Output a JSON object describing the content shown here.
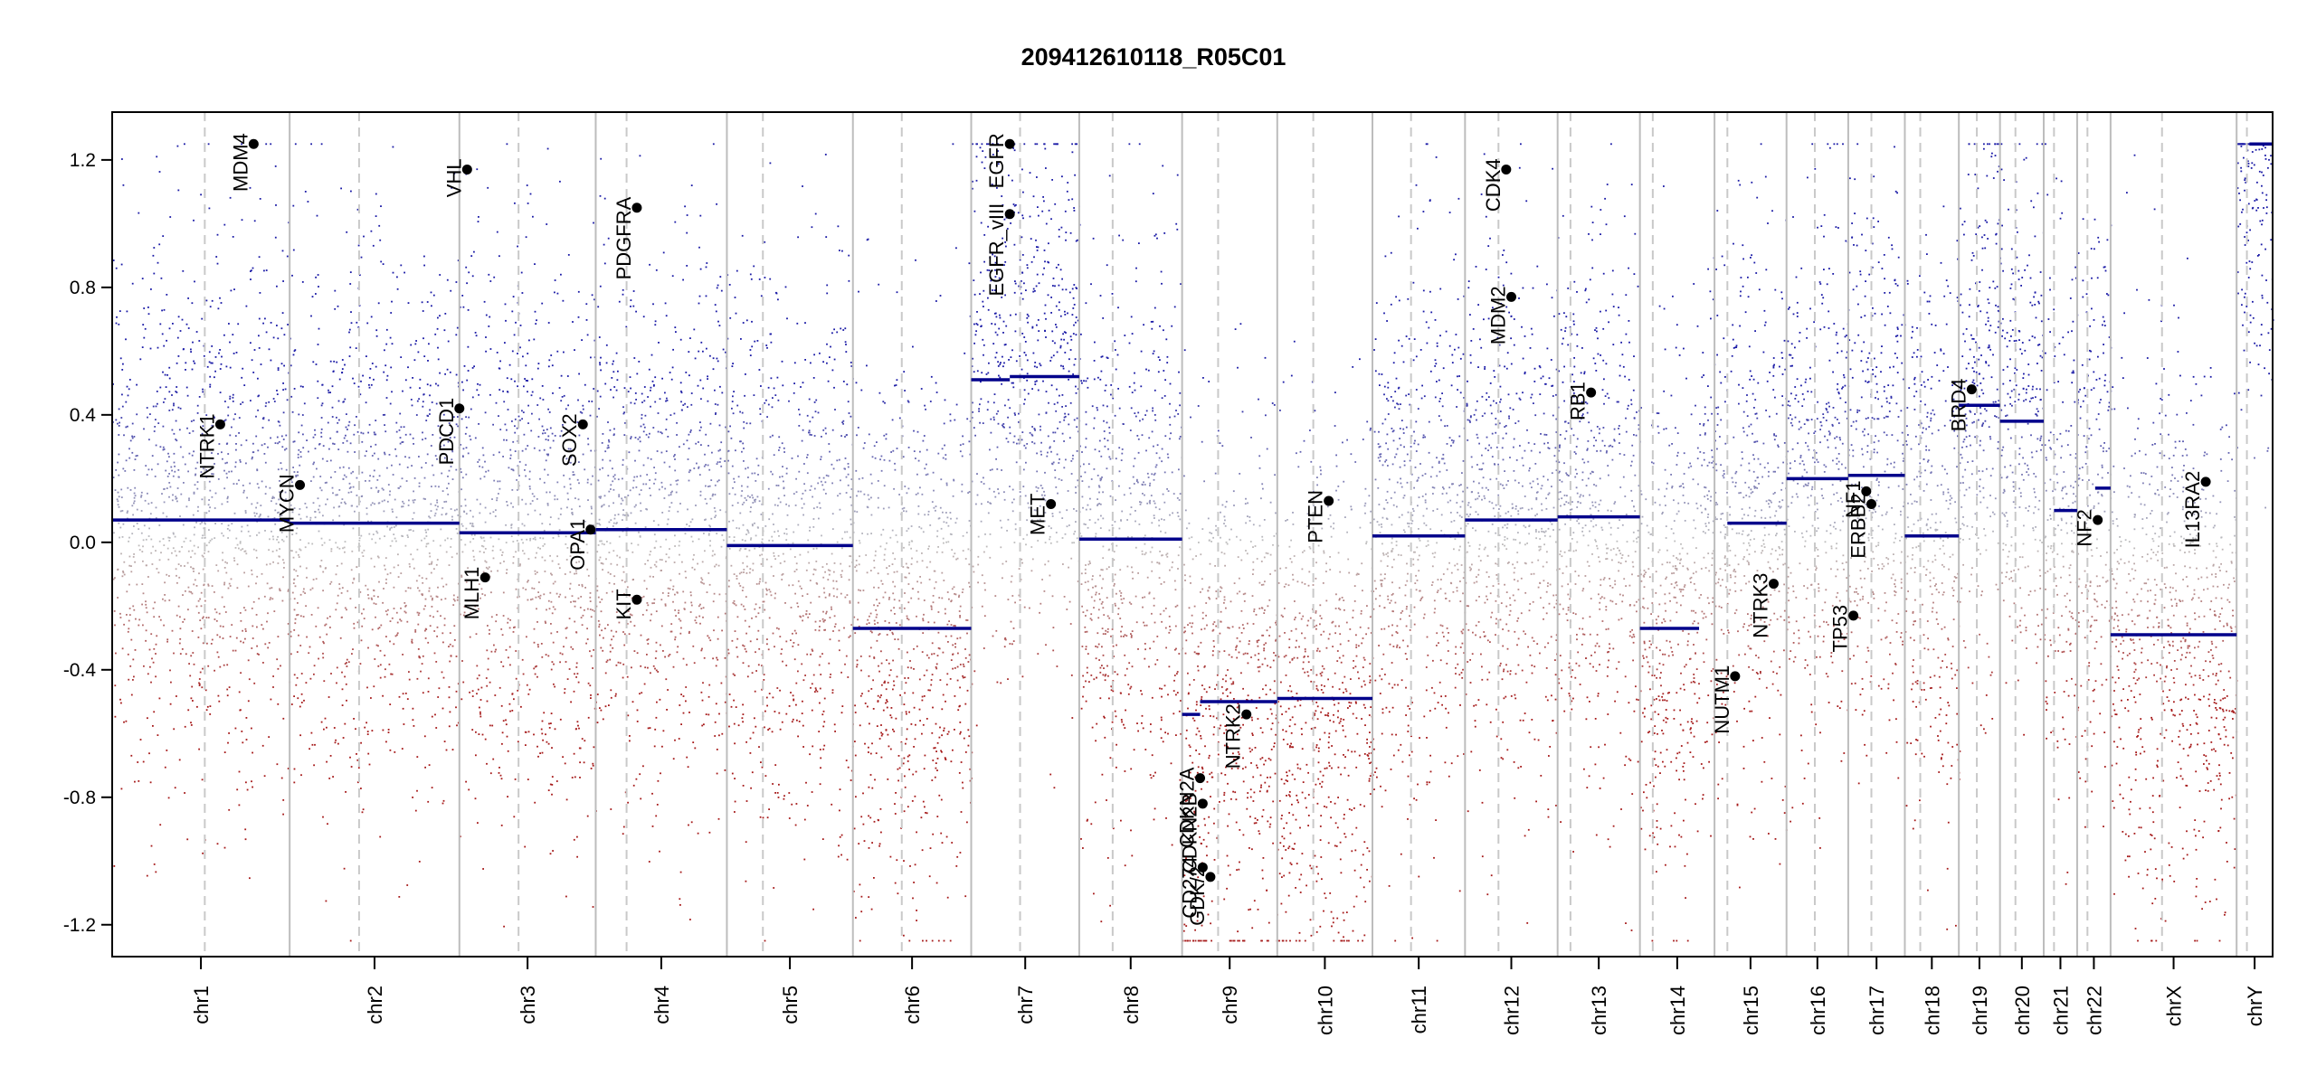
{
  "chart_data": {
    "type": "scatter",
    "title": "209412610118_R05C01",
    "xlabel": "",
    "ylabel": "",
    "ylim": [
      -1.3,
      1.35
    ],
    "yticks": [
      -1.2,
      -0.8,
      -0.4,
      0.0,
      0.4,
      0.8,
      1.2
    ],
    "ytick_labels": [
      "-1.2",
      "-0.8",
      "-0.4",
      "0.0",
      "0.4",
      "0.8",
      "1.2"
    ],
    "colors": {
      "gain": "#1a1aa6",
      "loss": "#a61a1a",
      "neutral": "#b4b4b4",
      "segment": "#00008b",
      "chrom_line": "#bdbdbd",
      "centromere_line": "#c9c9c9",
      "gene_point": "#000000"
    },
    "grid": false,
    "chromosomes": [
      {
        "name": "chr1",
        "start": 0.0,
        "end": 6.9,
        "centromere": 3.6,
        "segments": [
          {
            "from": 0.0,
            "to": 6.9,
            "value": 0.07
          }
        ]
      },
      {
        "name": "chr2",
        "start": 6.9,
        "end": 13.5,
        "centromere": 9.6,
        "segments": [
          {
            "from": 6.9,
            "to": 13.5,
            "value": 0.06
          }
        ]
      },
      {
        "name": "chr3",
        "start": 13.5,
        "end": 18.8,
        "centromere": 15.8,
        "segments": [
          {
            "from": 13.5,
            "to": 18.8,
            "value": 0.03
          }
        ]
      },
      {
        "name": "chr4",
        "start": 18.8,
        "end": 23.9,
        "centromere": 20.0,
        "segments": [
          {
            "from": 18.8,
            "to": 23.9,
            "value": 0.04
          }
        ]
      },
      {
        "name": "chr5",
        "start": 23.9,
        "end": 28.8,
        "centromere": 25.3,
        "segments": [
          {
            "from": 23.9,
            "to": 28.8,
            "value": -0.01
          }
        ]
      },
      {
        "name": "chr6",
        "start": 28.8,
        "end": 33.4,
        "centromere": 30.7,
        "segments": [
          {
            "from": 28.8,
            "to": 33.4,
            "value": -0.27
          }
        ]
      },
      {
        "name": "chr7",
        "start": 33.4,
        "end": 37.6,
        "centromere": 35.3,
        "segments": [
          {
            "from": 33.4,
            "to": 34.9,
            "value": 0.51
          },
          {
            "from": 34.9,
            "to": 37.6,
            "value": 0.52
          }
        ]
      },
      {
        "name": "chr8",
        "start": 37.6,
        "end": 41.6,
        "centromere": 38.9,
        "segments": [
          {
            "from": 37.6,
            "to": 41.6,
            "value": 0.01
          }
        ]
      },
      {
        "name": "chr9",
        "start": 41.6,
        "end": 45.3,
        "centromere": 43.0,
        "segments": [
          {
            "from": 41.6,
            "to": 42.3,
            "value": -0.54
          },
          {
            "from": 42.3,
            "to": 45.3,
            "value": -0.5
          }
        ]
      },
      {
        "name": "chr10",
        "start": 45.3,
        "end": 49.0,
        "centromere": 46.7,
        "segments": [
          {
            "from": 45.3,
            "to": 49.0,
            "value": -0.49
          }
        ]
      },
      {
        "name": "chr11",
        "start": 49.0,
        "end": 52.6,
        "centromere": 50.5,
        "segments": [
          {
            "from": 49.0,
            "to": 52.6,
            "value": 0.02
          }
        ]
      },
      {
        "name": "chr12",
        "start": 52.6,
        "end": 56.2,
        "centromere": 53.9,
        "segments": [
          {
            "from": 52.6,
            "to": 56.2,
            "value": 0.07
          }
        ]
      },
      {
        "name": "chr13",
        "start": 56.2,
        "end": 59.4,
        "centromere": 56.7,
        "segments": [
          {
            "from": 56.2,
            "to": 59.4,
            "value": 0.08
          }
        ]
      },
      {
        "name": "chr14",
        "start": 59.4,
        "end": 62.3,
        "centromere": 59.9,
        "segments": [
          {
            "from": 59.4,
            "to": 61.7,
            "value": -0.27
          }
        ]
      },
      {
        "name": "chr15",
        "start": 62.3,
        "end": 65.1,
        "centromere": 62.8,
        "segments": [
          {
            "from": 62.8,
            "to": 65.1,
            "value": 0.06
          }
        ]
      },
      {
        "name": "chr16",
        "start": 65.1,
        "end": 67.5,
        "centromere": 66.2,
        "segments": [
          {
            "from": 65.1,
            "to": 67.5,
            "value": 0.2
          }
        ]
      },
      {
        "name": "chr17",
        "start": 67.5,
        "end": 69.7,
        "centromere": 68.4,
        "segments": [
          {
            "from": 67.5,
            "to": 69.7,
            "value": 0.21
          }
        ]
      },
      {
        "name": "chr18",
        "start": 69.7,
        "end": 71.8,
        "centromere": 70.3,
        "segments": [
          {
            "from": 69.7,
            "to": 71.8,
            "value": 0.02
          }
        ]
      },
      {
        "name": "chr19",
        "start": 71.8,
        "end": 73.4,
        "centromere": 72.5,
        "segments": [
          {
            "from": 71.8,
            "to": 73.4,
            "value": 0.43
          }
        ]
      },
      {
        "name": "chr20",
        "start": 73.4,
        "end": 75.1,
        "centromere": 74.0,
        "segments": [
          {
            "from": 73.4,
            "to": 75.1,
            "value": 0.38
          }
        ]
      },
      {
        "name": "chr21",
        "start": 75.1,
        "end": 76.4,
        "centromere": 75.5,
        "segments": [
          {
            "from": 75.5,
            "to": 76.4,
            "value": 0.1
          }
        ]
      },
      {
        "name": "chr22",
        "start": 76.4,
        "end": 77.7,
        "centromere": 76.8,
        "segments": [
          {
            "from": 77.1,
            "to": 77.7,
            "value": 0.17
          }
        ]
      },
      {
        "name": "chrX",
        "start": 77.7,
        "end": 82.6,
        "centromere": 79.7,
        "segments": [
          {
            "from": 77.7,
            "to": 82.6,
            "value": -0.29
          }
        ]
      },
      {
        "name": "chrY",
        "start": 82.6,
        "end": 84.0,
        "centromere": 83.0,
        "segments": [
          {
            "from": 83.1,
            "to": 84.0,
            "value": 1.25
          }
        ]
      }
    ],
    "genes": [
      {
        "name": "MDM4",
        "x": 5.5,
        "y": 1.25
      },
      {
        "name": "NTRK1",
        "x": 4.2,
        "y": 0.37
      },
      {
        "name": "MYCN",
        "x": 7.3,
        "y": 0.18
      },
      {
        "name": "PDCD1",
        "x": 13.5,
        "y": 0.42
      },
      {
        "name": "VHL",
        "x": 13.8,
        "y": 1.17
      },
      {
        "name": "MLH1",
        "x": 14.5,
        "y": -0.11
      },
      {
        "name": "SOX2",
        "x": 18.3,
        "y": 0.37
      },
      {
        "name": "OPA1",
        "x": 18.6,
        "y": 0.04
      },
      {
        "name": "PDGFRA",
        "x": 20.4,
        "y": 1.05
      },
      {
        "name": "KIT",
        "x": 20.4,
        "y": -0.18
      },
      {
        "name": "EGFR",
        "x": 34.9,
        "y": 1.25
      },
      {
        "name": "EGFR_vIII",
        "x": 34.9,
        "y": 1.03
      },
      {
        "name": "MET",
        "x": 36.5,
        "y": 0.12
      },
      {
        "name": "CDKN2A",
        "x": 42.3,
        "y": -0.74
      },
      {
        "name": "CDKN2B",
        "x": 42.4,
        "y": -0.82
      },
      {
        "name": "CD274",
        "x": 42.4,
        "y": -1.02
      },
      {
        "name": "GDK/2",
        "x": 42.7,
        "y": -1.05
      },
      {
        "name": "NTRK2",
        "x": 44.1,
        "y": -0.54
      },
      {
        "name": "PTEN",
        "x": 47.3,
        "y": 0.13
      },
      {
        "name": "CDK4",
        "x": 54.2,
        "y": 1.17
      },
      {
        "name": "MDM2",
        "x": 54.4,
        "y": 0.77
      },
      {
        "name": "RB1",
        "x": 57.5,
        "y": 0.47
      },
      {
        "name": "NUTM1",
        "x": 63.1,
        "y": -0.42
      },
      {
        "name": "NTRK3",
        "x": 64.6,
        "y": -0.13
      },
      {
        "name": "TP53",
        "x": 67.7,
        "y": -0.23
      },
      {
        "name": "NF1",
        "x": 68.2,
        "y": 0.16
      },
      {
        "name": "ERBB2",
        "x": 68.4,
        "y": 0.12
      },
      {
        "name": "BRD4",
        "x": 72.3,
        "y": 0.48
      },
      {
        "name": "NF2",
        "x": 77.2,
        "y": 0.07
      },
      {
        "name": "IL13RA2",
        "x": 81.4,
        "y": 0.19
      }
    ]
  }
}
